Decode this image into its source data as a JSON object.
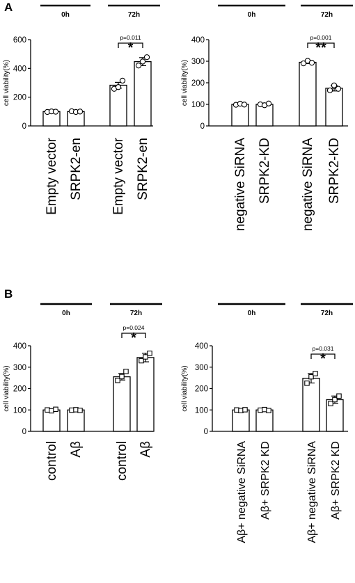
{
  "panels": [
    {
      "letter": "A"
    },
    {
      "letter": "B"
    }
  ],
  "chart_data": [
    {
      "type": "bar",
      "panel": "A",
      "timepoints": [
        "0h",
        "72h"
      ],
      "categories": [
        "Empty vector",
        "SRPK2-en",
        "Empty vector",
        "SRPK2-en"
      ],
      "values": [
        100,
        100,
        283,
        447
      ],
      "errors": [
        5,
        5,
        20,
        28
      ],
      "points": [
        [
          97,
          101,
          99
        ],
        [
          102,
          97,
          100
        ],
        [
          258,
          270,
          315
        ],
        [
          420,
          448,
          478
        ]
      ],
      "ylabel": "cell viability(%)",
      "ylim": [
        0,
        600
      ],
      "yticks": [
        "0",
        "200",
        "400",
        "600"
      ],
      "significance": {
        "p": "p=0.011",
        "stars": "*"
      }
    },
    {
      "type": "bar",
      "panel": "A",
      "timepoints": [
        "0h",
        "72h"
      ],
      "categories": [
        "negative SiRNA",
        "SRPK2-KD",
        "negative SiRNA",
        "SRPK2-KD"
      ],
      "values": [
        100,
        100,
        295,
        175
      ],
      "errors": [
        4,
        5,
        6,
        13
      ],
      "points": [
        [
          98,
          103,
          99
        ],
        [
          100,
          96,
          104
        ],
        [
          290,
          302,
          293
        ],
        [
          165,
          188,
          172
        ]
      ],
      "ylabel": "cell viability(%)",
      "ylim": [
        0,
        400
      ],
      "yticks": [
        "0",
        "100",
        "200",
        "300",
        "400"
      ],
      "significance": {
        "p": "p=0.001",
        "stars": "**"
      }
    },
    {
      "type": "bar",
      "panel": "B",
      "timepoints": [
        "0h",
        "72h"
      ],
      "categories": [
        "control",
        "Aβ",
        "control",
        "Aβ"
      ],
      "values": [
        100,
        100,
        255,
        345
      ],
      "errors": [
        5,
        4,
        15,
        20
      ],
      "points": [
        [
          100,
          96,
          103
        ],
        [
          99,
          101,
          98
        ],
        [
          238,
          256,
          280
        ],
        [
          330,
          348,
          365
        ]
      ],
      "ylabel": "cell viability(%)",
      "ylim": [
        0,
        400
      ],
      "yticks": [
        "0",
        "100",
        "200",
        "300",
        "400"
      ],
      "significance": {
        "p": "p=0.024",
        "stars": "*"
      }
    },
    {
      "type": "bar",
      "panel": "B",
      "timepoints": [
        "0h",
        "72h"
      ],
      "categories": [
        "Aβ+ negative SiRNA",
        "Aβ+ SRPK2 KD",
        "Aβ+ negative SiRNA",
        "Aβ+ SRPK2 KD"
      ],
      "values": [
        100,
        100,
        248,
        148
      ],
      "errors": [
        4,
        6,
        22,
        17
      ],
      "points": [
        [
          100,
          97,
          101
        ],
        [
          99,
          102,
          97
        ],
        [
          225,
          255,
          270
        ],
        [
          130,
          148,
          165
        ]
      ],
      "ylabel": "cell viability(%)",
      "ylim": [
        0,
        400
      ],
      "yticks": [
        "0",
        "100",
        "200",
        "300",
        "400"
      ],
      "significance": {
        "p": "p=0.031",
        "stars": "*"
      }
    }
  ]
}
